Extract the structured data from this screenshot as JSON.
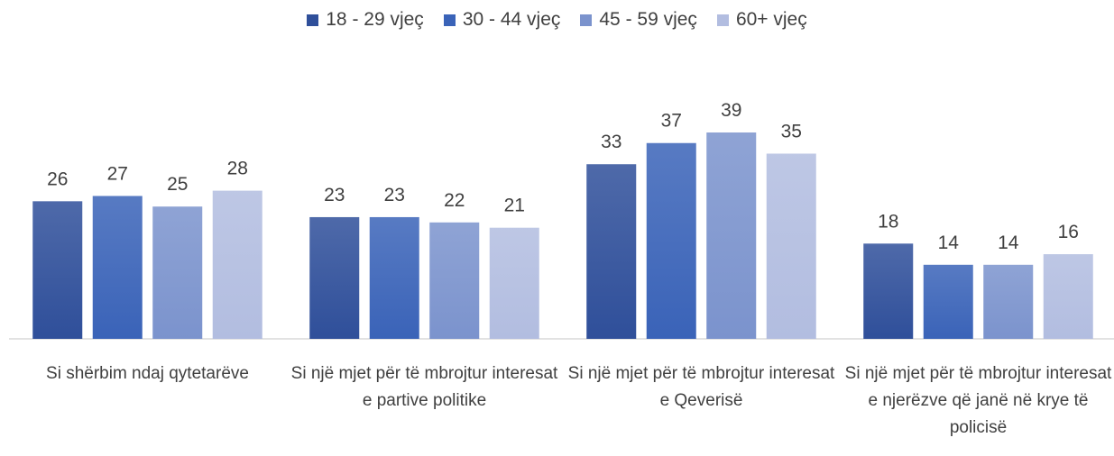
{
  "chart_data": {
    "type": "bar",
    "categories": [
      "Si shërbim ndaj qytetarëve",
      "Si një mjet për të mbrojtur interesat e partive politike",
      "Si një mjet për të mbrojtur interesat e Qeverisë",
      "Si një mjet për të mbrojtur interesat e njerëzve që janë në krye të policisë"
    ],
    "series": [
      {
        "name": "18 - 29 vjeç",
        "color": "#2f4f9a",
        "values": [
          26,
          23,
          33,
          18
        ]
      },
      {
        "name": "30 - 44 vjeç",
        "color": "#3a63b8",
        "values": [
          27,
          23,
          37,
          14
        ]
      },
      {
        "name": "45 - 59 vjeç",
        "color": "#7b93cd",
        "values": [
          25,
          22,
          39,
          14
        ]
      },
      {
        "name": "60+ vjeç",
        "color": "#b2bde0",
        "values": [
          28,
          21,
          35,
          16
        ]
      }
    ],
    "legend": "top"
  }
}
